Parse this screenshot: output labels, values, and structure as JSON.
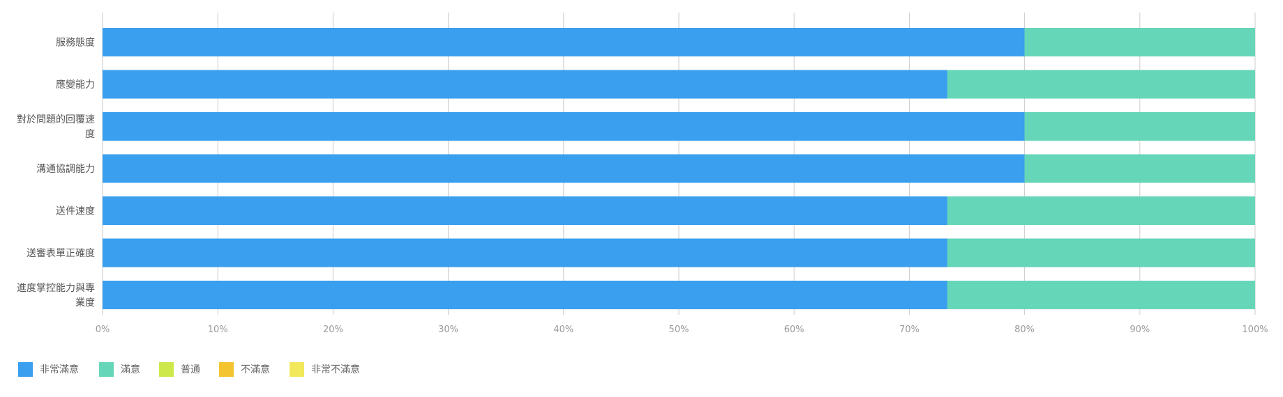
{
  "chart_data": {
    "type": "bar",
    "orientation": "horizontal",
    "stacked": true,
    "percent": true,
    "categories": [
      [
        "服務態度"
      ],
      [
        "應變能力"
      ],
      [
        "對於問題的回覆速",
        "度"
      ],
      [
        "溝通協調能力"
      ],
      [
        "送件速度"
      ],
      [
        "送審表單正確度"
      ],
      [
        "進度掌控能力與專",
        "業度"
      ]
    ],
    "series": [
      {
        "name": "非常滿意",
        "color": "#3a9fee",
        "values": [
          80,
          73.3,
          80,
          80,
          73.3,
          73.3,
          73.3
        ]
      },
      {
        "name": "滿意",
        "color": "#66d6b8",
        "values": [
          20,
          26.7,
          20,
          20,
          26.7,
          26.7,
          26.7
        ]
      },
      {
        "name": "普通",
        "color": "#cde84a",
        "values": [
          0,
          0,
          0,
          0,
          0,
          0,
          0
        ]
      },
      {
        "name": "不滿意",
        "color": "#f4c430",
        "values": [
          0,
          0,
          0,
          0,
          0,
          0,
          0
        ]
      },
      {
        "name": "非常不滿意",
        "color": "#f2e85c",
        "values": [
          0,
          0,
          0,
          0,
          0,
          0,
          0
        ]
      }
    ],
    "xlim": [
      0,
      100
    ],
    "xticks": [
      "0%",
      "10%",
      "20%",
      "30%",
      "40%",
      "50%",
      "60%",
      "70%",
      "80%",
      "90%",
      "100%"
    ],
    "grid": true,
    "legend_position": "bottom-left"
  }
}
